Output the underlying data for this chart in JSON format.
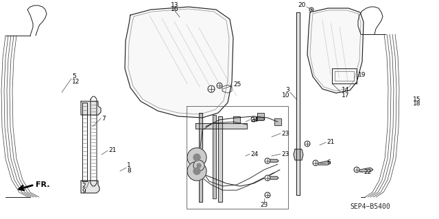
{
  "bg_color": "#ffffff",
  "line_color": "#1a1a1a",
  "label_color": "#000000",
  "diagram_code": "SEP4-B5400",
  "fr_label": "FR."
}
